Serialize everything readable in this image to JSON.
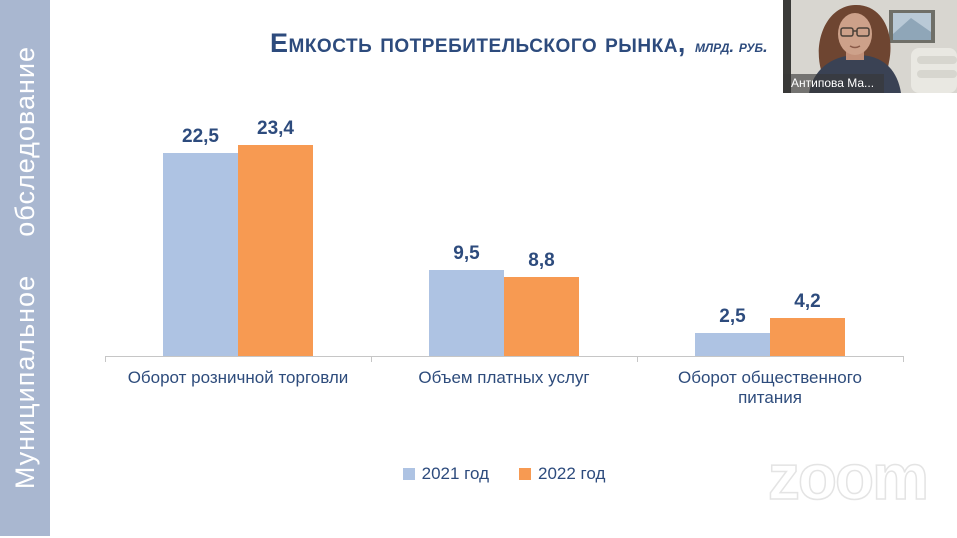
{
  "sidebar": {
    "label": "Муниципальное обследование",
    "bg_color": "#a9b7d0",
    "text_color": "#ffffff"
  },
  "title": {
    "text": "Емкость потребительского рынка,",
    "unit": "млрд. руб.",
    "color": "#2d4b7d"
  },
  "chart_data": {
    "type": "bar",
    "title": "Емкость потребительского рынка, млрд. руб.",
    "categories": [
      "Оборот розничной торговли",
      "Объем платных услуг",
      "Оборот общественного питания"
    ],
    "series": [
      {
        "name": "2021 год",
        "color": "#aec3e3",
        "values": [
          22.5,
          9.5,
          2.5
        ],
        "labels": [
          "22,5",
          "9,5",
          "2,5"
        ]
      },
      {
        "name": "2022 год",
        "color": "#f79a52",
        "values": [
          23.4,
          8.8,
          4.2
        ],
        "labels": [
          "23,4",
          "8,8",
          "4,2"
        ]
      }
    ],
    "ylim": [
      0,
      25
    ],
    "xlabel": "",
    "ylabel": "",
    "grid": false,
    "legend_position": "bottom",
    "value_label_color": "#2d4b7d",
    "axis_color": "#c6c6c6",
    "decimal_separator": ","
  },
  "webcam": {
    "name": "Антипова Ма..."
  },
  "watermark": {
    "text": "zoom"
  }
}
